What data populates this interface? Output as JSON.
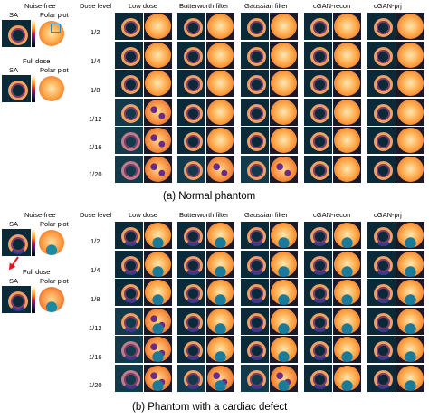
{
  "figure": {
    "panel_a": {
      "caption": "(a) Normal phantom",
      "reference": {
        "noise_free_label": "Noise-free",
        "full_dose_label": "Full dose",
        "sa_label": "SA",
        "polar_label": "Polar plot"
      },
      "dose_header": "Dose level",
      "columns": [
        "Low dose",
        "Butterworth filter",
        "Gaussian filter",
        "cGAN-recon",
        "cGAN-prj"
      ],
      "dose_levels": [
        "1/2",
        "1/4",
        "1/8",
        "1/12",
        "1/16",
        "1/20"
      ]
    },
    "panel_b": {
      "caption": "(b) Phantom with a cardiac defect",
      "reference": {
        "noise_free_label": "Noise-free",
        "full_dose_label": "Full dose",
        "sa_label": "SA",
        "polar_label": "Polar plot"
      },
      "dose_header": "Dose level",
      "columns": [
        "Low dose",
        "Butterworth filter",
        "Gaussian filter",
        "cGAN-recon",
        "cGAN-prj"
      ],
      "dose_levels": [
        "1/2",
        "1/4",
        "1/8",
        "1/12",
        "1/16",
        "1/20"
      ]
    }
  }
}
